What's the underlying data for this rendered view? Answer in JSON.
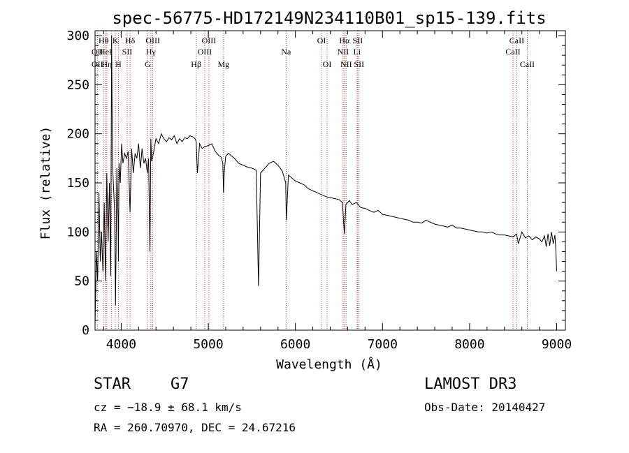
{
  "chart_data": {
    "type": "line",
    "title": "spec-56775-HD172149N234110B01_sp15-139.fits",
    "xlabel": "Wavelength (Å)",
    "ylabel": "Flux (relative)",
    "xlim": [
      3700,
      9100
    ],
    "ylim": [
      0,
      305
    ],
    "xticks": [
      {
        "value": 4000,
        "label": "4000"
      },
      {
        "value": 5000,
        "label": "5000"
      },
      {
        "value": 6000,
        "label": "6000"
      },
      {
        "value": 7000,
        "label": "7000"
      },
      {
        "value": 8000,
        "label": "8000"
      },
      {
        "value": 9000,
        "label": "9000"
      }
    ],
    "yticks": [
      {
        "value": 0,
        "label": "0"
      },
      {
        "value": 50,
        "label": "50"
      },
      {
        "value": 100,
        "label": "100"
      },
      {
        "value": 150,
        "label": "150"
      },
      {
        "value": 200,
        "label": "200"
      },
      {
        "value": 250,
        "label": "250"
      },
      {
        "value": 300,
        "label": "300"
      }
    ],
    "series": [
      {
        "name": "spectrum",
        "x": [
          3700,
          3715,
          3730,
          3745,
          3760,
          3775,
          3790,
          3805,
          3820,
          3835,
          3850,
          3865,
          3880,
          3890,
          3900,
          3915,
          3925,
          3935,
          3950,
          3965,
          3968,
          3975,
          3990,
          4005,
          4020,
          4040,
          4060,
          4080,
          4102,
          4120,
          4140,
          4160,
          4180,
          4200,
          4220,
          4240,
          4260,
          4280,
          4300,
          4315,
          4330,
          4340,
          4350,
          4370,
          4400,
          4430,
          4460,
          4490,
          4520,
          4550,
          4580,
          4610,
          4640,
          4670,
          4700,
          4730,
          4760,
          4790,
          4820,
          4850,
          4861,
          4875,
          4900,
          4930,
          4960,
          5000,
          5040,
          5080,
          5120,
          5150,
          5167,
          5175,
          5183,
          5200,
          5230,
          5260,
          5300,
          5350,
          5400,
          5450,
          5500,
          5550,
          5577,
          5600,
          5650,
          5700,
          5750,
          5800,
          5850,
          5889,
          5896,
          5920,
          5960,
          6000,
          6050,
          6100,
          6150,
          6200,
          6250,
          6300,
          6350,
          6400,
          6450,
          6500,
          6540,
          6563,
          6580,
          6620,
          6650,
          6700,
          6750,
          6800,
          6850,
          6900,
          6950,
          7000,
          7050,
          7100,
          7150,
          7200,
          7250,
          7300,
          7350,
          7400,
          7450,
          7500,
          7550,
          7600,
          7650,
          7700,
          7750,
          7800,
          7850,
          7900,
          7950,
          8000,
          8050,
          8100,
          8150,
          8200,
          8250,
          8300,
          8350,
          8400,
          8450,
          8500,
          8540,
          8560,
          8600,
          8640,
          8680,
          8720,
          8760,
          8800,
          8830,
          8860,
          8880,
          8900,
          8920,
          8940,
          8960,
          8980,
          8990,
          9000
        ],
        "values": [
          5,
          80,
          50,
          140,
          70,
          100,
          60,
          130,
          50,
          160,
          90,
          150,
          55,
          300,
          170,
          140,
          120,
          25,
          165,
          110,
          70,
          170,
          150,
          190,
          170,
          180,
          175,
          182,
          120,
          185,
          160,
          180,
          175,
          190,
          165,
          185,
          170,
          175,
          160,
          175,
          80,
          195,
          172,
          180,
          195,
          190,
          200,
          195,
          192,
          196,
          194,
          198,
          190,
          195,
          192,
          196,
          195,
          198,
          197,
          195,
          192,
          160,
          190,
          185,
          187,
          188,
          190,
          182,
          178,
          176,
          170,
          140,
          160,
          177,
          180,
          178,
          175,
          170,
          168,
          166,
          165,
          163,
          45,
          160,
          165,
          170,
          172,
          168,
          162,
          150,
          112,
          158,
          155,
          152,
          150,
          148,
          144,
          142,
          140,
          138,
          136,
          135,
          134,
          133,
          130,
          98,
          128,
          132,
          128,
          130,
          125,
          124,
          122,
          120,
          122,
          118,
          117,
          116,
          115,
          114,
          113,
          112,
          110,
          110,
          109,
          112,
          110,
          108,
          107,
          106,
          105,
          107,
          104,
          104,
          103,
          102,
          101,
          100,
          100,
          99,
          100,
          98,
          97,
          97,
          96,
          95,
          98,
          88,
          100,
          94,
          96,
          92,
          95,
          93,
          90,
          96,
          85,
          98,
          86,
          100,
          88,
          97,
          82,
          60
        ]
      }
    ],
    "line_labels": [
      {
        "name": "Hθ",
        "wave": 3798,
        "row": 1
      },
      {
        "name": "OII",
        "wave": 3727,
        "row": 2
      },
      {
        "name": "OII",
        "wave": 3727,
        "row": 3
      },
      {
        "name": "HeI",
        "wave": 3820,
        "row": 2
      },
      {
        "name": "Hη",
        "wave": 3835,
        "row": 3
      },
      {
        "name": "K",
        "wave": 3934,
        "row": 1
      },
      {
        "name": "H",
        "wave": 3968,
        "row": 3
      },
      {
        "name": "SII",
        "wave": 4069,
        "row": 2
      },
      {
        "name": "Hδ",
        "wave": 4102,
        "row": 1
      },
      {
        "name": "OIII",
        "wave": 4363,
        "row": 1
      },
      {
        "name": "Hγ",
        "wave": 4341,
        "row": 2
      },
      {
        "name": "G",
        "wave": 4304,
        "row": 3
      },
      {
        "name": "Hβ",
        "wave": 4861,
        "row": 3
      },
      {
        "name": "OIII",
        "wave": 4959,
        "row": 2
      },
      {
        "name": "OIII",
        "wave": 5007,
        "row": 1
      },
      {
        "name": "Mg",
        "wave": 5175,
        "row": 3
      },
      {
        "name": "Na",
        "wave": 5893,
        "row": 2
      },
      {
        "name": "OI",
        "wave": 6300,
        "row": 1
      },
      {
        "name": "OI",
        "wave": 6364,
        "row": 3
      },
      {
        "name": "Hα",
        "wave": 6563,
        "row": 1
      },
      {
        "name": "NII",
        "wave": 6548,
        "row": 2
      },
      {
        "name": "NII",
        "wave": 6583,
        "row": 3
      },
      {
        "name": "SII",
        "wave": 6716,
        "row": 1
      },
      {
        "name": "Li",
        "wave": 6708,
        "row": 2
      },
      {
        "name": "SII",
        "wave": 6731,
        "row": 3
      },
      {
        "name": "CaII",
        "wave": 8542,
        "row": 1
      },
      {
        "name": "CaII",
        "wave": 8498,
        "row": 2
      },
      {
        "name": "CaII",
        "wave": 8662,
        "row": 3
      }
    ],
    "line_marker_waves": [
      3727,
      3798,
      3820,
      3835,
      3889,
      3934,
      3968,
      4069,
      4102,
      4304,
      4341,
      4363,
      4861,
      4959,
      5007,
      5175,
      5893,
      6300,
      6364,
      6548,
      6563,
      6583,
      6708,
      6716,
      6731,
      8498,
      8542,
      8662
    ]
  },
  "info": {
    "object_class": "STAR",
    "subclass": "G7",
    "survey": "LAMOST DR3",
    "cz": "cz = −18.9 ± 68.1 km/s",
    "obs_date": "Obs-Date: 20140427",
    "radec": "RA = 260.70970, DEC =  24.67216"
  },
  "colors": {
    "line_marker": "#c0392b",
    "spectrum": "#000000",
    "axes": "#000000"
  }
}
